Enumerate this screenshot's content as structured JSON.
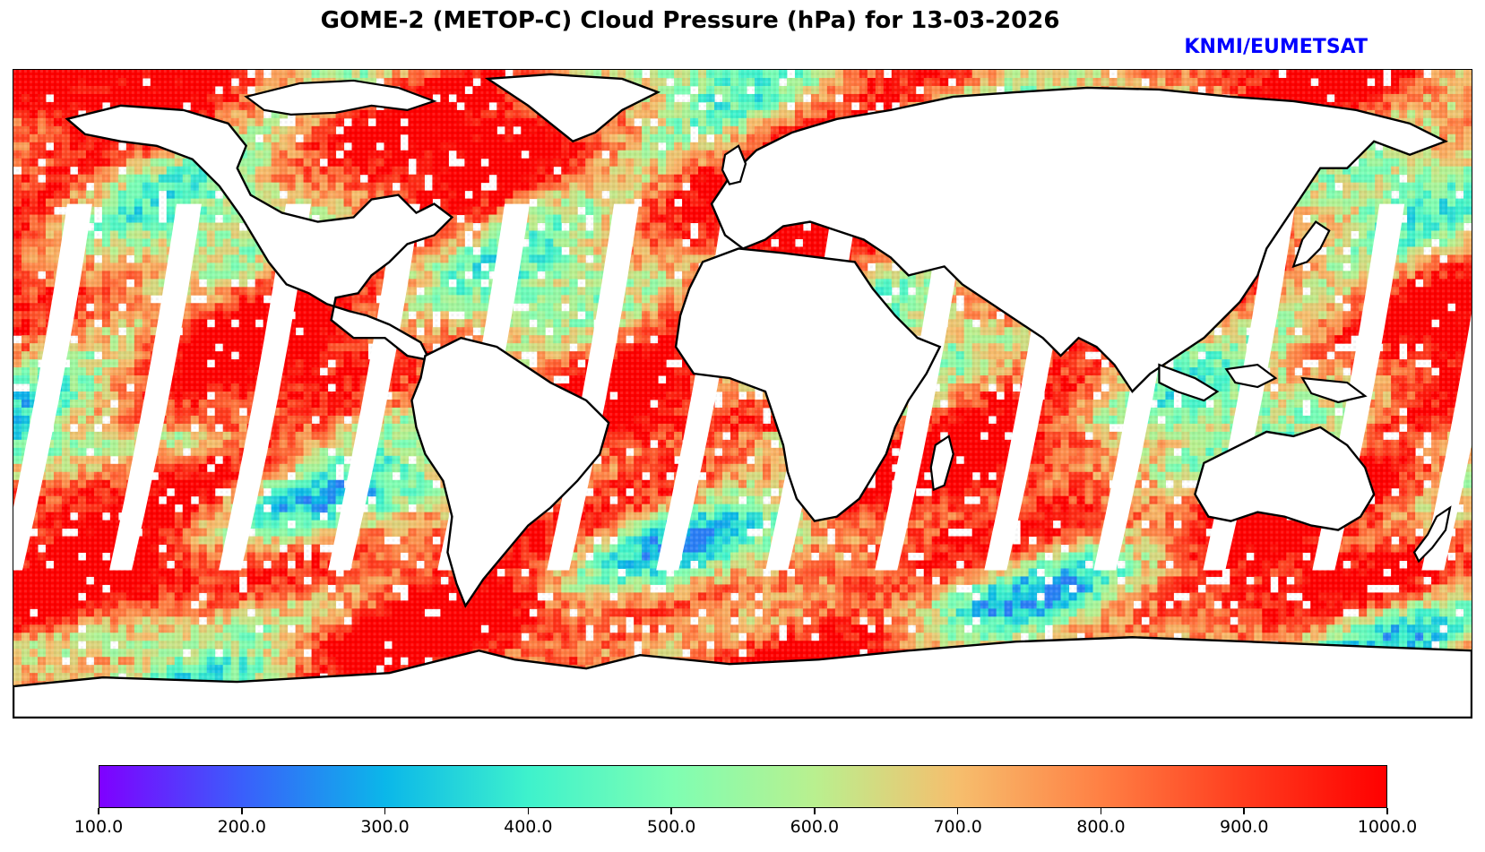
{
  "title": "GOME-2 (METOP-C) Cloud Pressure (hPa) for 13-03-2026",
  "credit": {
    "text": "KNMI/EUMETSAT",
    "color": "#0000ff"
  },
  "map": {
    "projection": "equirectangular",
    "lon_range": [
      -180,
      180
    ],
    "lat_range": [
      -90,
      90
    ],
    "variable": "Cloud Pressure (hPa)",
    "orbit_gap_count": 14
  },
  "colorbar": {
    "colormap": "rainbow",
    "min": 100.0,
    "max": 1000.0,
    "stops": [
      "#7f00ff",
      "#3a5ffb",
      "#0bb7e9",
      "#3ef2cc",
      "#7efeb3",
      "#b9f08f",
      "#f6be6d",
      "#ff8044",
      "#ff3c1e",
      "#ff0000"
    ],
    "tick_labels": [
      "100.0",
      "200.0",
      "300.0",
      "400.0",
      "500.0",
      "600.0",
      "700.0",
      "800.0",
      "900.0",
      "1000.0"
    ],
    "tick_values": [
      100,
      200,
      300,
      400,
      500,
      600,
      700,
      800,
      900,
      1000
    ]
  }
}
